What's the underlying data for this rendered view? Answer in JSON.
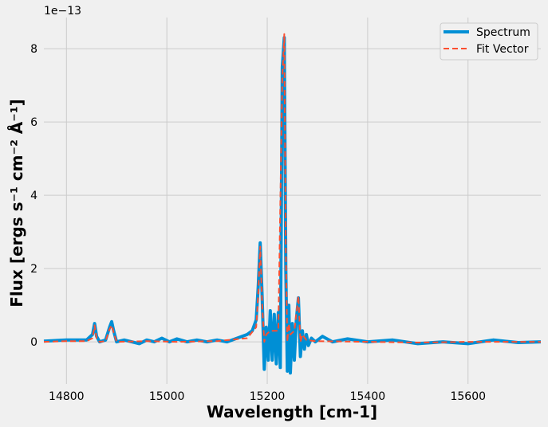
{
  "chart_data": {
    "type": "line",
    "xlabel": "Wavelength [cm-1]",
    "ylabel": "Flux [ergs s⁻¹ cm⁻² Å⁻¹]",
    "y_scale_label": "1e−13",
    "xlim": [
      14755,
      15745
    ],
    "ylim": [
      -1.15,
      8.85
    ],
    "x_ticks": [
      14800,
      15000,
      15200,
      15400,
      15600
    ],
    "x_tick_labels": [
      "14800",
      "15000",
      "15200",
      "15400",
      "15600"
    ],
    "y_ticks": [
      0,
      2,
      4,
      6,
      8
    ],
    "y_tick_labels": [
      "0",
      "2",
      "4",
      "6",
      "8"
    ],
    "grid": true,
    "legend_position": "top-right",
    "colors": {
      "spectrum": "#008fd5",
      "fit": "#fc4f30",
      "background": "#f0f0f0",
      "grid": "#cbcbcb"
    },
    "series": [
      {
        "name": "Spectrum",
        "style": "solid",
        "x": [
          14755,
          14800,
          14840,
          14852,
          14856,
          14860,
          14866,
          14878,
          14886,
          14890,
          14894,
          14900,
          14915,
          14930,
          14945,
          14960,
          14975,
          14990,
          15005,
          15020,
          15040,
          15060,
          15080,
          15100,
          15120,
          15140,
          15160,
          15170,
          15178,
          15182,
          15186,
          15190,
          15194,
          15198,
          15202,
          15206,
          15210,
          15214,
          15218,
          15222,
          15226,
          15230,
          15234,
          15237,
          15240,
          15243,
          15246,
          15250,
          15254,
          15258,
          15262,
          15266,
          15270,
          15274,
          15278,
          15282,
          15288,
          15296,
          15310,
          15330,
          15360,
          15400,
          15450,
          15500,
          15550,
          15600,
          15650,
          15700,
          15745
        ],
        "y": [
          0.02,
          0.05,
          0.05,
          0.2,
          0.5,
          0.15,
          0.0,
          0.05,
          0.4,
          0.55,
          0.3,
          0.0,
          0.05,
          0.0,
          -0.05,
          0.05,
          0.0,
          0.1,
          0.0,
          0.08,
          0.0,
          0.05,
          0.0,
          0.05,
          0.0,
          0.1,
          0.2,
          0.3,
          0.6,
          1.5,
          2.7,
          1.2,
          -0.75,
          0.4,
          -0.5,
          0.85,
          -0.5,
          0.75,
          -0.6,
          0.8,
          -0.7,
          7.5,
          8.3,
          2.0,
          -0.8,
          1.0,
          -0.85,
          0.5,
          -0.5,
          0.6,
          1.2,
          -0.4,
          0.3,
          -0.2,
          0.2,
          -0.1,
          0.1,
          0.0,
          0.15,
          0.0,
          0.08,
          0.0,
          0.05,
          -0.05,
          0.0,
          -0.05,
          0.05,
          -0.02,
          0.0
        ]
      },
      {
        "name": "Fit Vector",
        "style": "dashed",
        "x": [
          14755,
          14800,
          14840,
          14852,
          14856,
          14860,
          14866,
          14878,
          14886,
          14890,
          14894,
          14900,
          14960,
          15020,
          15100,
          15160,
          15178,
          15182,
          15186,
          15190,
          15194,
          15198,
          15206,
          15214,
          15222,
          15230,
          15234,
          15237,
          15240,
          15243,
          15246,
          15254,
          15262,
          15266,
          15270,
          15278,
          15296,
          15400,
          15500,
          15600,
          15745
        ],
        "y": [
          0.0,
          0.02,
          0.02,
          0.1,
          0.45,
          0.1,
          0.0,
          0.02,
          0.35,
          0.45,
          0.25,
          0.0,
          0.02,
          0.0,
          0.02,
          0.1,
          0.4,
          1.3,
          2.6,
          1.0,
          0.0,
          0.2,
          0.3,
          0.3,
          0.3,
          7.2,
          8.4,
          2.5,
          0.0,
          0.5,
          0.2,
          0.3,
          1.25,
          0.0,
          0.2,
          0.05,
          0.02,
          0.0,
          -0.02,
          0.0,
          0.0
        ]
      }
    ]
  }
}
